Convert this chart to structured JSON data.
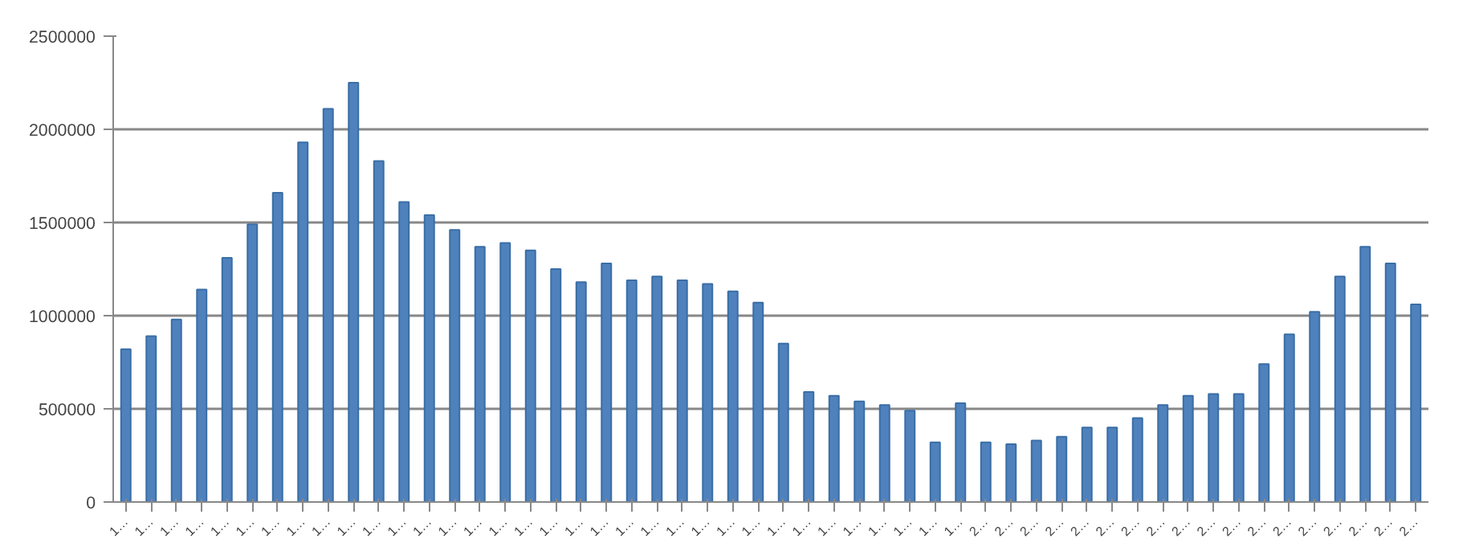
{
  "chart_data": {
    "type": "bar",
    "categories": [
      "1…",
      "1…",
      "1…",
      "1…",
      "1…",
      "1…",
      "1…",
      "1…",
      "1…",
      "1…",
      "1…",
      "1…",
      "1…",
      "1…",
      "1…",
      "1…",
      "1…",
      "1…",
      "1…",
      "1…",
      "1…",
      "1…",
      "1…",
      "1…",
      "1…",
      "1…",
      "1…",
      "1…",
      "1…",
      "1…",
      "1…",
      "1…",
      "1…",
      "1…",
      "2…",
      "2…",
      "2…",
      "2…",
      "2…",
      "2…",
      "2…",
      "2…",
      "2…",
      "2…",
      "2…",
      "2…",
      "2…",
      "2…",
      "2…",
      "2…",
      "2…",
      "2…"
    ],
    "values": [
      820000,
      890000,
      980000,
      1140000,
      1310000,
      1490000,
      1660000,
      1930000,
      2110000,
      2250000,
      1830000,
      1610000,
      1540000,
      1460000,
      1370000,
      1390000,
      1350000,
      1250000,
      1180000,
      1280000,
      1190000,
      1210000,
      1190000,
      1170000,
      1130000,
      1070000,
      850000,
      590000,
      570000,
      540000,
      520000,
      490000,
      320000,
      530000,
      320000,
      310000,
      330000,
      350000,
      400000,
      400000,
      450000,
      520000,
      570000,
      580000,
      580000,
      740000,
      900000,
      1020000,
      1210000,
      1370000,
      1280000,
      1060000
    ],
    "color": "#4f81bd",
    "ylim": [
      0,
      2500000
    ],
    "yticks": [
      0,
      500000,
      1000000,
      1500000,
      2000000,
      2500000
    ],
    "grid": "y"
  }
}
